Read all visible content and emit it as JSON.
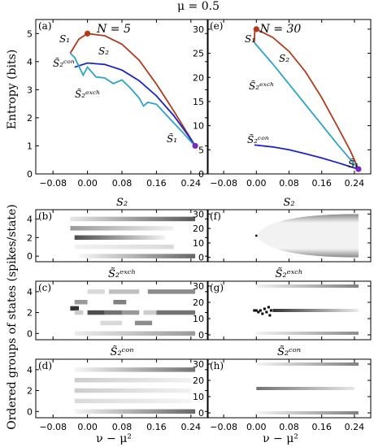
{
  "figure_title": "μ = 0.5",
  "columns": [
    {
      "header": "N = 5"
    },
    {
      "header": "N = 30"
    }
  ],
  "left_ylabel_top": "Entropy (bits)",
  "left_ylabel_bottom": "Ordered groups of states (spikes/state)",
  "xlabel": "ν − μ²",
  "panel_labels": [
    "(a)",
    "(b)",
    "(c)",
    "(d)",
    "(e)",
    "(f)",
    "(g)",
    "(h)"
  ],
  "heatmap_titles": {
    "S2": "S₂",
    "S2exch": "S̃₂ᵉˣᶜʰ",
    "S2con": "S̃₂ᶜᵒⁿ"
  },
  "curve_labels": {
    "S1": "S₁",
    "S2": "S₂",
    "S2con": "S̃₂ᶜᵒⁿ",
    "S2exch": "S̃₂ᵉˣᶜʰ",
    "S1tilde": "S̃₁"
  },
  "x_ticks": [
    "−0.08",
    "0.00",
    "0.08",
    "0.16",
    "0.24"
  ],
  "colors": {
    "S2": "#b03a1e",
    "S2exch": "#2ea3c9",
    "S2con": "#1a24c8",
    "point": "#7a2ac0"
  },
  "chart_data": [
    {
      "id": "a",
      "type": "line",
      "xlim": [
        -0.12,
        0.28
      ],
      "ylim": [
        0,
        5.5
      ],
      "xticks": [
        -0.08,
        0.0,
        0.08,
        0.16,
        0.24
      ],
      "yticks": [
        0,
        1,
        2,
        3,
        4,
        5
      ],
      "ylabel": "Entropy (bits)",
      "series": [
        {
          "name": "S₂",
          "color": "S2",
          "x": [
            -0.04,
            -0.02,
            0.0,
            0.04,
            0.08,
            0.12,
            0.16,
            0.2,
            0.23,
            0.25
          ],
          "y": [
            4.3,
            4.8,
            5.0,
            4.92,
            4.62,
            4.05,
            3.2,
            2.25,
            1.5,
            1.0
          ]
        },
        {
          "name": "S̃₂ᶜᵒⁿ",
          "color": "S2con",
          "x": [
            -0.03,
            0.0,
            0.04,
            0.08,
            0.12,
            0.16,
            0.2,
            0.23,
            0.25
          ],
          "y": [
            3.8,
            3.95,
            3.9,
            3.7,
            3.32,
            2.78,
            2.08,
            1.45,
            1.0
          ]
        },
        {
          "name": "S̃₂ᵉˣᶜʰ",
          "color": "S2exch",
          "x": [
            -0.04,
            -0.03,
            -0.01,
            0.0,
            0.02,
            0.04,
            0.06,
            0.08,
            0.1,
            0.12,
            0.13,
            0.14,
            0.16,
            0.18,
            0.2,
            0.22,
            0.24,
            0.25
          ],
          "y": [
            4.3,
            4.15,
            3.52,
            3.8,
            3.45,
            3.42,
            3.22,
            3.35,
            3.05,
            2.7,
            2.42,
            2.55,
            2.48,
            2.15,
            1.82,
            1.5,
            1.15,
            1.0
          ]
        }
      ],
      "points": [
        {
          "label": "S₁",
          "x": 0.0,
          "y": 5.0,
          "color": "S2"
        },
        {
          "label": "S̃₁",
          "x": 0.25,
          "y": 1.0,
          "color": "point"
        }
      ]
    },
    {
      "id": "e",
      "type": "line",
      "xlim": [
        -0.12,
        0.28
      ],
      "ylim": [
        0,
        32
      ],
      "xticks": [
        -0.08,
        0.0,
        0.08,
        0.16,
        0.24
      ],
      "yticks": [
        0,
        5,
        10,
        15,
        20,
        25,
        30
      ],
      "series": [
        {
          "name": "S₂",
          "color": "S2",
          "x": [
            -0.005,
            -0.004,
            0.0,
            0.04,
            0.08,
            0.12,
            0.16,
            0.2,
            0.23,
            0.25
          ],
          "y": [
            27.2,
            29.6,
            30.0,
            28.3,
            25.4,
            21.2,
            15.8,
            9.6,
            4.8,
            1.0
          ]
        },
        {
          "name": "S̃₂ᵉˣᶜʰ",
          "color": "S2exch",
          "x": [
            -0.005,
            0.04,
            0.08,
            0.12,
            0.16,
            0.2,
            0.23,
            0.25
          ],
          "y": [
            27.2,
            22.8,
            18.6,
            14.4,
            10.2,
            6.0,
            3.0,
            1.0
          ]
        },
        {
          "name": "S̃₂ᶜᵒⁿ",
          "color": "S2con",
          "x": [
            -0.005,
            0.04,
            0.08,
            0.12,
            0.16,
            0.2,
            0.23,
            0.25
          ],
          "y": [
            6.0,
            5.6,
            5.0,
            4.2,
            3.3,
            2.3,
            1.5,
            1.0
          ]
        }
      ],
      "points": [
        {
          "label": "S₁",
          "x": 0.0,
          "y": 30.0,
          "color": "S2"
        },
        {
          "label": "S̃₁",
          "x": 0.25,
          "y": 1.0,
          "color": "point"
        }
      ]
    },
    {
      "id": "b",
      "type": "heatmap",
      "xlim": [
        -0.12,
        0.28
      ],
      "ylim": [
        -0.6,
        5
      ],
      "yticks": [
        0,
        2,
        4
      ],
      "bands": [
        {
          "y": 4,
          "x0": -0.04,
          "x1": 0.25,
          "g0": 0.9,
          "g1": 0.35
        },
        {
          "y": 3,
          "x0": -0.04,
          "x1": 0.2,
          "g0": 0.6,
          "g1": 0.95
        },
        {
          "y": 2,
          "x0": -0.03,
          "x1": 0.18,
          "g0": 0.3,
          "g1": 0.95
        },
        {
          "y": 1,
          "x0": -0.03,
          "x1": 0.2,
          "g0": 0.95,
          "g1": 0.85
        },
        {
          "y": 0,
          "x0": -0.02,
          "x1": 0.25,
          "g0": 0.97,
          "g1": 0.4
        }
      ]
    },
    {
      "id": "c",
      "type": "heatmap",
      "xlim": [
        -0.12,
        0.28
      ],
      "ylim": [
        -0.6,
        5
      ],
      "yticks": [
        0,
        2,
        4
      ],
      "bands": [
        {
          "y": 4,
          "x0": 0.0,
          "x1": 0.04,
          "g0": 0.85,
          "g1": 0.85
        },
        {
          "y": 4,
          "x0": 0.05,
          "x1": 0.12,
          "g0": 0.75,
          "g1": 0.75
        },
        {
          "y": 4,
          "x0": 0.14,
          "x1": 0.25,
          "g0": 0.55,
          "g1": 0.55
        },
        {
          "y": 3,
          "x0": -0.03,
          "x1": 0.0,
          "g0": 0.6,
          "g1": 0.6
        },
        {
          "y": 3,
          "x0": 0.06,
          "x1": 0.09,
          "g0": 0.5,
          "g1": 0.5
        },
        {
          "y": 2.4,
          "x0": -0.04,
          "x1": -0.02,
          "g0": 0.2,
          "g1": 0.2
        },
        {
          "y": 2,
          "x0": -0.03,
          "x1": -0.01,
          "g0": 0.8,
          "g1": 0.8
        },
        {
          "y": 2,
          "x0": 0.0,
          "x1": 0.04,
          "g0": 0.3,
          "g1": 0.3
        },
        {
          "y": 2,
          "x0": 0.04,
          "x1": 0.08,
          "g0": 0.45,
          "g1": 0.45
        },
        {
          "y": 2,
          "x0": 0.08,
          "x1": 0.12,
          "g0": 0.6,
          "g1": 0.6
        },
        {
          "y": 2,
          "x0": 0.13,
          "x1": 0.16,
          "g0": 0.8,
          "g1": 0.8
        },
        {
          "y": 2,
          "x0": 0.16,
          "x1": 0.25,
          "g0": 0.45,
          "g1": 0.45
        },
        {
          "y": 1,
          "x0": 0.11,
          "x1": 0.15,
          "g0": 0.55,
          "g1": 0.55
        },
        {
          "y": 1,
          "x0": 0.03,
          "x1": 0.08,
          "g0": 0.85,
          "g1": 0.85
        },
        {
          "y": 0,
          "x0": -0.03,
          "x1": 0.25,
          "g0": 0.93,
          "g1": 0.6
        }
      ]
    },
    {
      "id": "d",
      "type": "heatmap",
      "xlim": [
        -0.12,
        0.28
      ],
      "ylim": [
        -0.6,
        5
      ],
      "yticks": [
        0,
        2,
        4
      ],
      "bands": [
        {
          "y": 4,
          "x0": -0.03,
          "x1": 0.25,
          "g0": 0.96,
          "g1": 0.45
        },
        {
          "y": 3,
          "x0": -0.03,
          "x1": 0.24,
          "g0": 0.8,
          "g1": 0.95
        },
        {
          "y": 2,
          "x0": -0.03,
          "x1": 0.24,
          "g0": 0.8,
          "g1": 0.95
        },
        {
          "y": 1,
          "x0": -0.03,
          "x1": 0.24,
          "g0": 0.85,
          "g1": 0.96
        },
        {
          "y": 0,
          "x0": -0.03,
          "x1": 0.25,
          "g0": 0.96,
          "g1": 0.4
        }
      ]
    },
    {
      "id": "f",
      "type": "heatmap",
      "xlim": [
        -0.12,
        0.28
      ],
      "ylim": [
        -3,
        33
      ],
      "yticks": [
        0,
        10,
        20,
        30
      ],
      "cone": {
        "apex_x": 0.0,
        "apex_y": 15,
        "end_x": 0.25,
        "top_y": 30,
        "bottom_y": 0
      }
    },
    {
      "id": "g",
      "type": "heatmap",
      "xlim": [
        -0.12,
        0.28
      ],
      "ylim": [
        -3,
        33
      ],
      "yticks": [
        0,
        10,
        20,
        30
      ],
      "bands": [
        {
          "y": 30,
          "x0": 0.0,
          "x1": 0.25,
          "g0": 0.95,
          "g1": 0.5
        },
        {
          "y": 15,
          "x0": 0.04,
          "x1": 0.25,
          "g0": 0.2,
          "g1": 0.92
        },
        {
          "y": 1,
          "x0": 0.0,
          "x1": 0.25,
          "g0": 0.95,
          "g1": 0.55
        }
      ],
      "points": [
        {
          "x": -0.005,
          "y": 15
        },
        {
          "x": 0.0,
          "y": 15
        },
        {
          "x": 0.005,
          "y": 14
        },
        {
          "x": 0.01,
          "y": 15
        },
        {
          "x": 0.015,
          "y": 13
        },
        {
          "x": 0.02,
          "y": 16
        },
        {
          "x": 0.025,
          "y": 14
        },
        {
          "x": 0.03,
          "y": 17
        },
        {
          "x": 0.033,
          "y": 12
        },
        {
          "x": 0.036,
          "y": 15
        }
      ]
    },
    {
      "id": "h",
      "type": "heatmap",
      "xlim": [
        -0.12,
        0.28
      ],
      "ylim": [
        -3,
        33
      ],
      "yticks": [
        0,
        10,
        20,
        30
      ],
      "bands": [
        {
          "y": 30,
          "x0": 0.0,
          "x1": 0.25,
          "g0": 0.96,
          "g1": 0.5
        },
        {
          "y": 15,
          "x0": 0.0,
          "x1": 0.24,
          "g0": 0.45,
          "g1": 0.9
        },
        {
          "y": 0,
          "x0": 0.0,
          "x1": 0.25,
          "g0": 0.96,
          "g1": 0.5
        }
      ]
    }
  ]
}
